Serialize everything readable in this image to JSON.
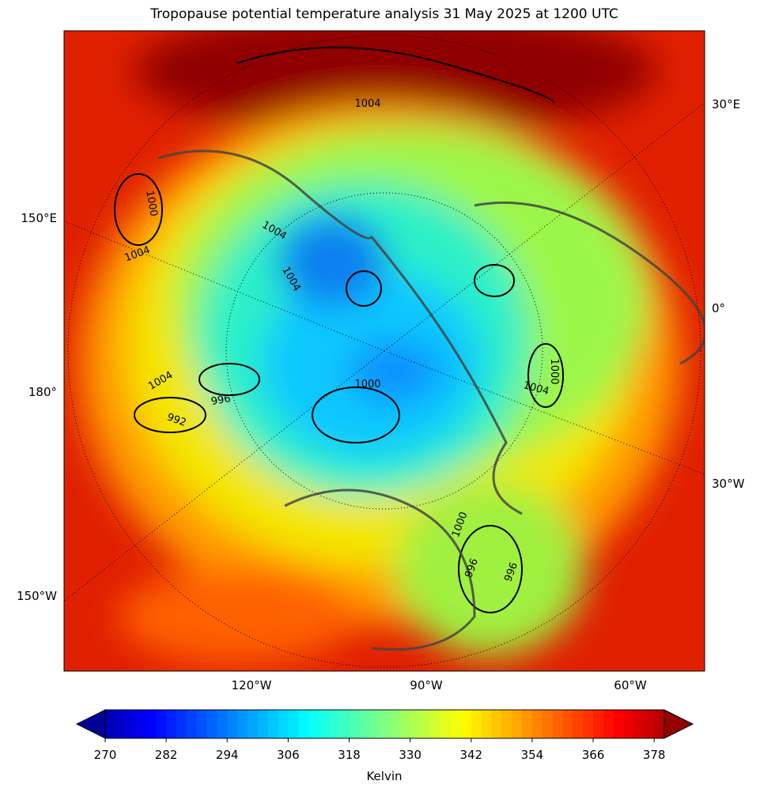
{
  "title": "Tropopause potential temperature analysis 31 May 2025 at 1200 UTC",
  "map": {
    "lon_labels": [
      "30°E",
      "150°E",
      "0°",
      "180°",
      "30°W",
      "150°W",
      "120°W",
      "90°W",
      "60°W"
    ],
    "contour_labels": [
      "1004",
      "1004",
      "1004",
      "1004",
      "1000",
      "996",
      "992",
      "1000",
      "1004",
      "1000",
      "1004",
      "996",
      "1000",
      "996"
    ]
  },
  "colorbar": {
    "label": "Kelvin",
    "lim": [
      270,
      380
    ],
    "ticks": [
      270,
      282,
      294,
      306,
      318,
      330,
      342,
      354,
      366,
      378
    ],
    "colormap": "jet",
    "extend": "both"
  }
}
